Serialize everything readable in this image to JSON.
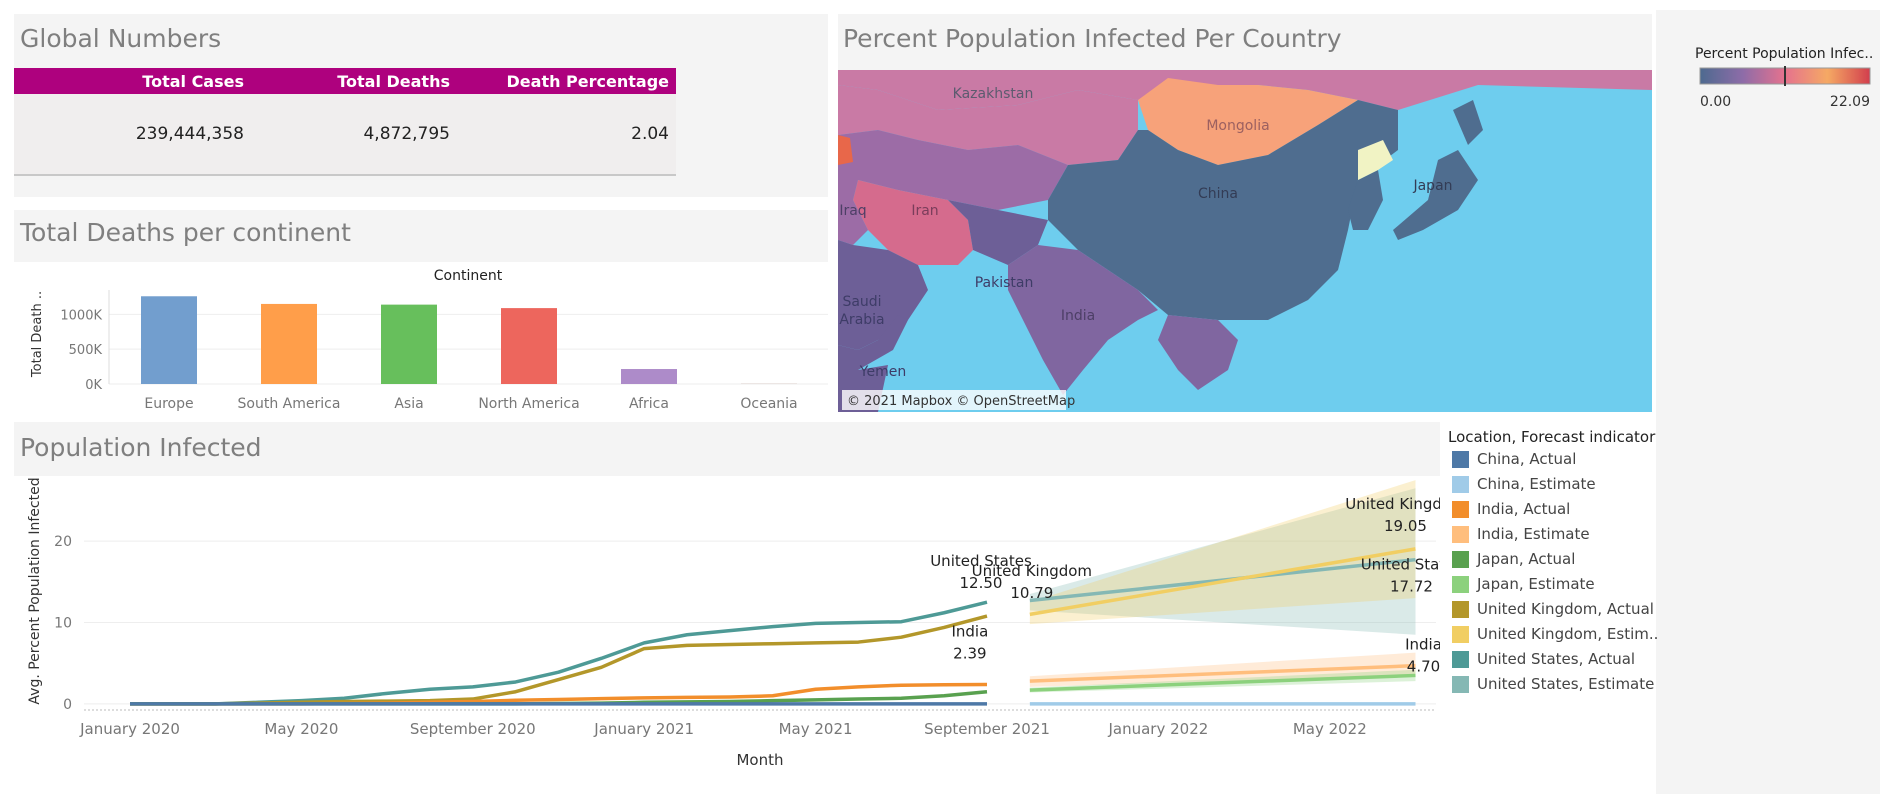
{
  "global_numbers": {
    "title": "Global Numbers",
    "headers": [
      "Total Cases",
      "Total Deaths",
      "Death Percentage"
    ],
    "values": [
      "239,444,358",
      "4,872,795",
      "2.04"
    ],
    "header_color": "#ae017e"
  },
  "map": {
    "title": "Percent Population Infected Per Country",
    "attribution": "© 2021 Mapbox © OpenStreetMap",
    "labels": [
      "Kazakhstan",
      "Mongolia",
      "China",
      "Japan",
      "Iran",
      "Iraq",
      "Pakistan",
      "India",
      "Saudi",
      "Arabia",
      "Yemen"
    ],
    "legend_title": "Percent Population Infec..",
    "legend_min": "0.00",
    "legend_max": "22.09"
  },
  "continent_chart": {
    "title": "Total Deaths per continent",
    "chart_data": {
      "type": "bar",
      "title": "Continent",
      "xlabel": "",
      "ylabel": "Total Death ..",
      "categories": [
        "Europe",
        "South America",
        "Asia",
        "North America",
        "Africa",
        "Oceania"
      ],
      "values": [
        1260000,
        1150000,
        1140000,
        1090000,
        215000,
        2000
      ],
      "colors": [
        "#729ece",
        "#ff9e4a",
        "#67bf5c",
        "#ed665d",
        "#ad8bc9",
        "#a8786e"
      ],
      "ylim": [
        0,
        1350000
      ],
      "yticks": [
        {
          "v": 0,
          "label": "0K"
        },
        {
          "v": 500000,
          "label": "500K"
        },
        {
          "v": 1000000,
          "label": "1000K"
        }
      ]
    }
  },
  "infected_chart": {
    "title": "Population Infected",
    "chart_data": {
      "type": "line",
      "xlabel": "Month",
      "ylabel": "Avg. Percent Population Infected",
      "x_ticks": [
        "January 2020",
        "May 2020",
        "September 2020",
        "January 2021",
        "May 2021",
        "September 2021",
        "January 2022",
        "May 2022"
      ],
      "ylim": [
        -0.5,
        28
      ],
      "yticks": [
        0,
        10,
        20
      ],
      "months_actual": [
        "Jan 2020",
        "Feb 2020",
        "Mar 2020",
        "Apr 2020",
        "May 2020",
        "Jun 2020",
        "Jul 2020",
        "Aug 2020",
        "Sep 2020",
        "Oct 2020",
        "Nov 2020",
        "Dec 2020",
        "Jan 2021",
        "Feb 2021",
        "Mar 2021",
        "Apr 2021",
        "May 2021",
        "Jun 2021",
        "Jul 2021",
        "Aug 2021",
        "Sep 2021"
      ],
      "months_estimate": [
        "Oct 2021",
        "Jul 2022"
      ],
      "series": [
        {
          "name": "United States",
          "kind": "Actual",
          "color": "#4e9a96",
          "values": [
            0,
            0,
            0,
            0.2,
            0.4,
            0.7,
            1.3,
            1.8,
            2.1,
            2.7,
            3.9,
            5.6,
            7.5,
            8.5,
            9.0,
            9.5,
            9.9,
            10.0,
            10.1,
            11.2,
            12.5
          ]
        },
        {
          "name": "United Kingdom",
          "kind": "Actual",
          "color": "#b3972a",
          "values": [
            0,
            0,
            0,
            0.1,
            0.2,
            0.3,
            0.35,
            0.4,
            0.6,
            1.5,
            3.0,
            4.5,
            6.8,
            7.2,
            7.3,
            7.4,
            7.5,
            7.6,
            8.2,
            9.4,
            10.79
          ]
        },
        {
          "name": "India",
          "kind": "Actual",
          "color": "#f28e2b",
          "values": [
            0,
            0,
            0,
            0,
            0,
            0.05,
            0.1,
            0.2,
            0.3,
            0.45,
            0.55,
            0.65,
            0.75,
            0.8,
            0.85,
            1.0,
            1.8,
            2.1,
            2.3,
            2.35,
            2.39
          ]
        },
        {
          "name": "Japan",
          "kind": "Actual",
          "color": "#59a14f",
          "values": [
            0,
            0,
            0,
            0,
            0,
            0,
            0,
            0,
            0,
            0,
            0.05,
            0.1,
            0.2,
            0.25,
            0.3,
            0.4,
            0.5,
            0.6,
            0.7,
            1.0,
            1.5
          ]
        },
        {
          "name": "China",
          "kind": "Actual",
          "color": "#4e79a7",
          "values": [
            0,
            0,
            0,
            0,
            0,
            0,
            0,
            0,
            0,
            0,
            0,
            0,
            0,
            0,
            0,
            0,
            0,
            0,
            0,
            0,
            0
          ]
        },
        {
          "name": "United States",
          "kind": "Estimate",
          "color": "#85b8b4",
          "values": [
            12.7,
            17.72
          ],
          "band": [
            [
              11.5,
              13.5
            ],
            [
              8.5,
              26.5
            ]
          ]
        },
        {
          "name": "United Kingdom",
          "kind": "Estimate",
          "color": "#f1ce63",
          "values": [
            11.0,
            19.05
          ],
          "band": [
            [
              9.8,
              12.5
            ],
            [
              13.0,
              27.5
            ]
          ]
        },
        {
          "name": "India",
          "kind": "Estimate",
          "color": "#ffbe7d",
          "values": [
            2.8,
            4.7
          ],
          "band": [
            [
              2.1,
              3.4
            ],
            [
              3.5,
              6.3
            ]
          ]
        },
        {
          "name": "Japan",
          "kind": "Estimate",
          "color": "#8cd17d",
          "values": [
            1.7,
            3.5
          ],
          "band": [
            [
              1.4,
              2.0
            ],
            [
              2.8,
              4.2
            ]
          ]
        },
        {
          "name": "China",
          "kind": "Estimate",
          "color": "#a0cbe8",
          "values": [
            0,
            0
          ]
        }
      ],
      "annotations": [
        {
          "name": "United States",
          "value": "12.50"
        },
        {
          "name": "United Kingdom",
          "value": "10.79"
        },
        {
          "name": "India",
          "value": "2.39"
        },
        {
          "name": "United Kingdom",
          "value": "19.05"
        },
        {
          "name": "United States",
          "value": "17.72"
        },
        {
          "name": "India",
          "value": "4.70"
        }
      ]
    },
    "legend_title": "Location, Forecast indicator",
    "legend": [
      {
        "label": "China, Actual",
        "color": "#4e79a7"
      },
      {
        "label": "China, Estimate",
        "color": "#a0cbe8"
      },
      {
        "label": "India, Actual",
        "color": "#f28e2b"
      },
      {
        "label": "India, Estimate",
        "color": "#ffbe7d"
      },
      {
        "label": "Japan, Actual",
        "color": "#59a14f"
      },
      {
        "label": "Japan, Estimate",
        "color": "#8cd17d"
      },
      {
        "label": "United Kingdom, Actual",
        "color": "#b3972a"
      },
      {
        "label": "United Kingdom, Estim..",
        "color": "#f1ce63"
      },
      {
        "label": "United States, Actual",
        "color": "#4e9a96"
      },
      {
        "label": "United States, Estimate",
        "color": "#85b8b4"
      }
    ]
  }
}
